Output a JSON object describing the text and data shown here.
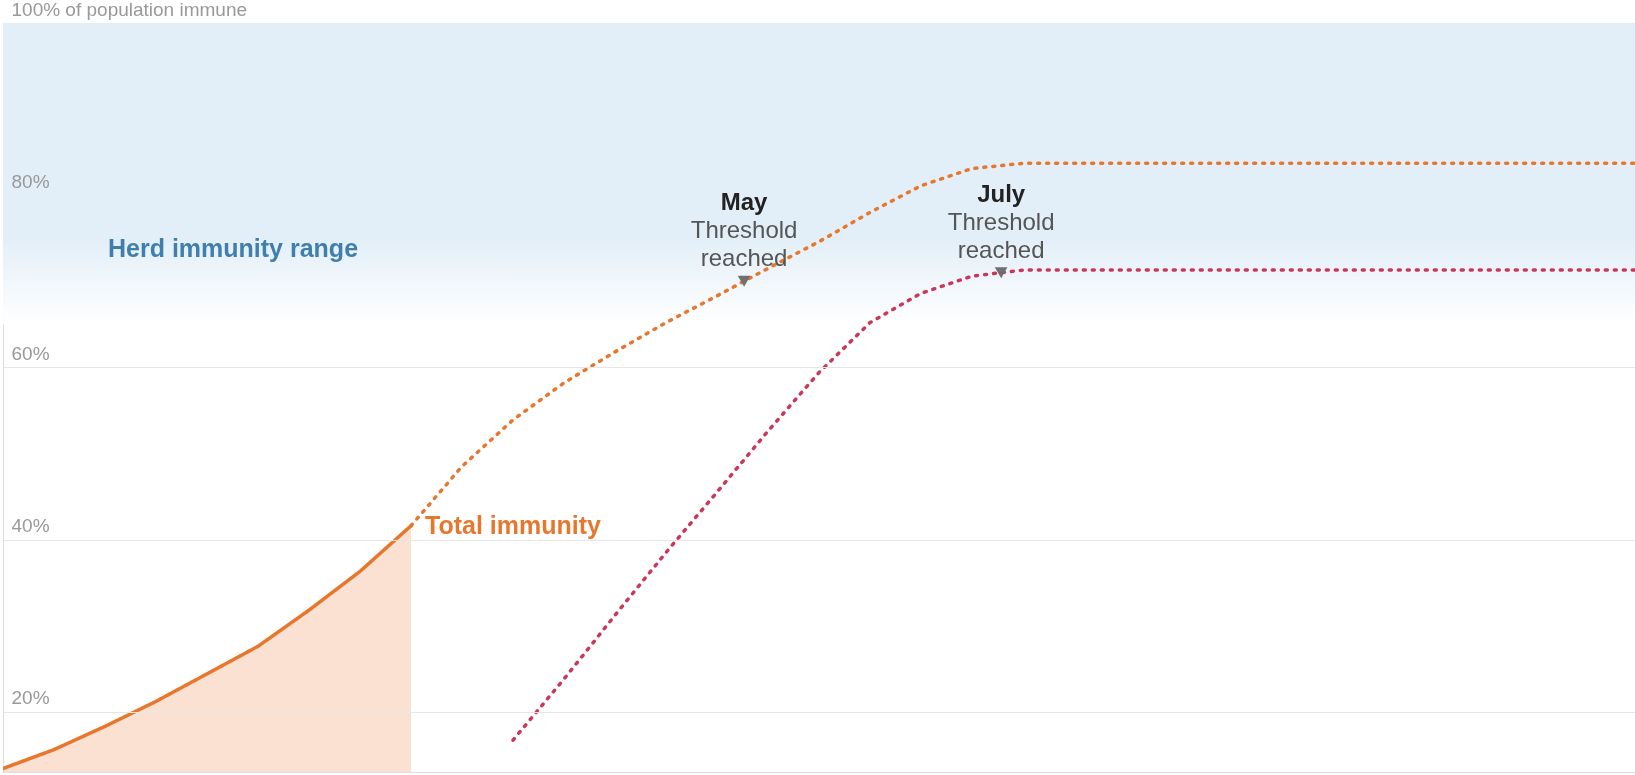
{
  "chart_data": {
    "type": "line",
    "categories": [
      null,
      null,
      null,
      null,
      null,
      null,
      null,
      null,
      null,
      null,
      null,
      null,
      null,
      null,
      null,
      null,
      null,
      null,
      null,
      null,
      null,
      null,
      null,
      null,
      null,
      null,
      null,
      null,
      null,
      null,
      null,
      null,
      null
    ],
    "series": [
      {
        "name": "Total immunity",
        "type": "area",
        "color": "#e8772e",
        "line_style": "solid",
        "values": [
          13.4,
          15.6,
          18.3,
          21.2,
          24.4,
          27.6,
          31.8,
          36.3,
          41.6,
          null,
          null,
          null,
          null,
          null,
          null,
          null,
          null,
          null,
          null,
          null,
          null,
          null,
          null,
          null,
          null,
          null,
          null,
          null,
          null,
          null,
          null,
          null,
          null
        ]
      },
      {
        "color": "#e8772e",
        "line_style": "dotted",
        "values": [
          null,
          null,
          null,
          null,
          null,
          null,
          null,
          null,
          41.6,
          48.5,
          53.9,
          58.2,
          61.8,
          65.2,
          68.3,
          71.5,
          74.6,
          78.0,
          81.1,
          83.1,
          83.7,
          83.7,
          83.7,
          83.7,
          83.7,
          83.7,
          83.7,
          83.7,
          83.7,
          83.7,
          83.7,
          83.7,
          83.7
        ]
      },
      {
        "color": "#c9385a",
        "line_style": "dotted",
        "values": [
          null,
          null,
          null,
          null,
          null,
          null,
          null,
          null,
          null,
          null,
          16.7,
          23.8,
          31.2,
          38.5,
          45.5,
          52.6,
          59.4,
          65.2,
          68.6,
          70.6,
          71.3,
          71.3,
          71.3,
          71.3,
          71.3,
          71.3,
          71.3,
          71.3,
          71.3,
          71.3,
          71.3,
          71.3,
          71.3
        ]
      }
    ],
    "ylim": [
      13,
      100
    ],
    "yticks": [
      {
        "value": 20,
        "label": "20%"
      },
      {
        "value": 40,
        "label": "40%"
      },
      {
        "value": 60,
        "label": "60%"
      },
      {
        "value": 80,
        "label": "80%"
      },
      {
        "value": 100,
        "label": "100% of population immune"
      }
    ],
    "bands": [
      {
        "axis": "y",
        "from": 65,
        "to": 100,
        "label": "Herd immunity range",
        "color": "#e3eff8"
      }
    ],
    "annotations": [
      {
        "text": "May\nThreshold\nreached",
        "y": 70
      },
      {
        "text": "July\nThreshold\nreached",
        "y": 71
      }
    ],
    "grid": "y",
    "tick_labels": "y"
  }
}
